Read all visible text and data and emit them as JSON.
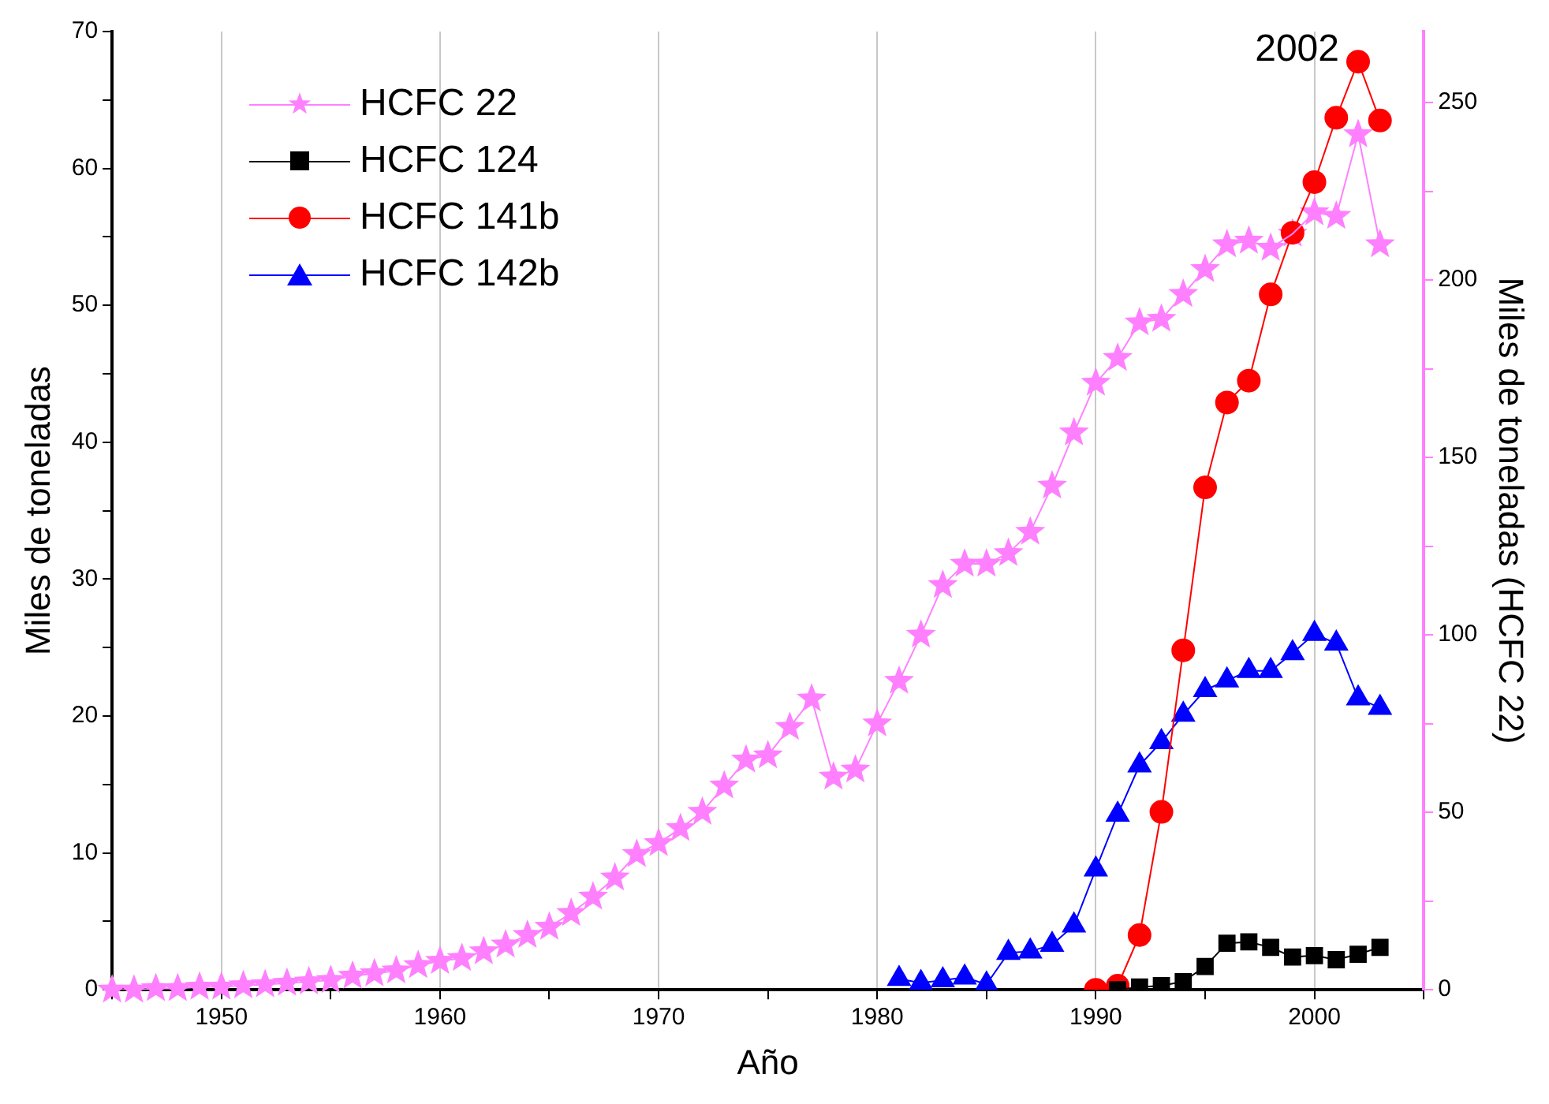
{
  "chart_data": {
    "type": "line",
    "xlabel": "Año",
    "ylabel": "Miles de toneladas",
    "y2label": "Miles de toneladas (HCFC 22)",
    "x": [
      1945,
      1946,
      1947,
      1948,
      1949,
      1950,
      1951,
      1952,
      1953,
      1954,
      1955,
      1956,
      1957,
      1958,
      1959,
      1960,
      1961,
      1962,
      1963,
      1964,
      1965,
      1966,
      1967,
      1968,
      1969,
      1970,
      1971,
      1972,
      1973,
      1974,
      1975,
      1976,
      1977,
      1978,
      1979,
      1980,
      1981,
      1982,
      1983,
      1984,
      1985,
      1986,
      1987,
      1988,
      1989,
      1990,
      1991,
      1992,
      1993,
      1994,
      1995,
      1996,
      1997,
      1998,
      1999,
      2000,
      2001,
      2002,
      2003
    ],
    "series": [
      {
        "name": "HCFC 22",
        "color": "#ff80ff",
        "marker": "star",
        "axis": "y2",
        "values": [
          0,
          0,
          0.4,
          0.4,
          0.8,
          0.8,
          1.2,
          1.5,
          1.9,
          2.3,
          2.7,
          3.9,
          4.6,
          5.4,
          6.9,
          8.1,
          8.9,
          10.8,
          12.7,
          15.4,
          17.7,
          21.6,
          26.2,
          31.6,
          38.2,
          41.3,
          45.5,
          50.1,
          57.5,
          64.8,
          66,
          74,
          82,
          60,
          62,
          75,
          87,
          100,
          114,
          120,
          120,
          123,
          129,
          142,
          157,
          171,
          178,
          188,
          189,
          196,
          203,
          210,
          211,
          209,
          213,
          219,
          218,
          241,
          210
        ]
      },
      {
        "name": "HCFC 124",
        "color": "#000000",
        "marker": "square",
        "x": [
          1991,
          1992,
          1993,
          1994,
          1995,
          1996,
          1997,
          1998,
          1999,
          2000,
          2001,
          2002,
          2003
        ],
        "values": [
          0,
          0.2,
          0.3,
          0.6,
          1.7,
          3.4,
          3.5,
          3.1,
          2.4,
          2.5,
          2.2,
          2.6,
          3.1
        ]
      },
      {
        "name": "HCFC 141b",
        "color": "#ff0000",
        "marker": "circle",
        "x": [
          1990,
          1991,
          1992,
          1993,
          1994,
          1995,
          1996,
          1997,
          1998,
          1999,
          2000,
          2001,
          2002,
          2003
        ],
        "values": [
          0,
          0.3,
          4.0,
          13.0,
          24.8,
          36.7,
          42.9,
          44.5,
          50.8,
          55.3,
          59.0,
          63.7,
          67.8,
          63.5
        ]
      },
      {
        "name": "HCFC 142b",
        "color": "#0000ff",
        "marker": "triangle",
        "x": [
          1981,
          1982,
          1983,
          1984,
          1985,
          1986,
          1987,
          1988,
          1989,
          1990,
          1991,
          1992,
          1993,
          1994,
          1995,
          1996,
          1997,
          1998,
          1999,
          2000,
          2001,
          2002,
          2003
        ],
        "values": [
          0.8,
          0.5,
          0.7,
          0.9,
          0.4,
          2.7,
          2.8,
          3.3,
          4.7,
          8.8,
          12.8,
          16.4,
          18.1,
          20.1,
          21.9,
          22.6,
          23.3,
          23.3,
          24.6,
          26.0,
          25.3,
          21.3,
          20.6
        ]
      }
    ],
    "xlim": [
      1945,
      2005
    ],
    "xticks": [
      {
        "value": 1945,
        "label": null
      },
      1950,
      {
        "value": 1955,
        "label": null
      },
      1960,
      {
        "value": 1965,
        "label": null
      },
      1970,
      {
        "value": 1975,
        "label": null
      },
      1980,
      {
        "value": 1985,
        "label": null
      },
      1990,
      {
        "value": 1995,
        "label": null
      },
      2000,
      {
        "value": 2005,
        "label": null
      }
    ],
    "ylim": [
      0,
      70
    ],
    "yticks": [
      0,
      {
        "value": 5,
        "label": null
      },
      10,
      {
        "value": 15,
        "label": null
      },
      20,
      {
        "value": 25,
        "label": null
      },
      30,
      {
        "value": 35,
        "label": null
      },
      40,
      {
        "value": 45,
        "label": null
      },
      50,
      {
        "value": 55,
        "label": null
      },
      60,
      {
        "value": 65,
        "label": null
      },
      70
    ],
    "y2lim": [
      0,
      270
    ],
    "y2ticks": [
      0,
      {
        "value": 25,
        "label": null
      },
      50,
      {
        "value": 75,
        "label": null
      },
      100,
      {
        "value": 125,
        "label": null
      },
      150,
      {
        "value": 175,
        "label": null
      },
      200,
      {
        "value": 225,
        "label": null
      },
      250
    ],
    "annotations": [
      {
        "text": "2002",
        "x": 2002,
        "y": 67.8
      }
    ],
    "grid": "x",
    "legend": "top left"
  }
}
